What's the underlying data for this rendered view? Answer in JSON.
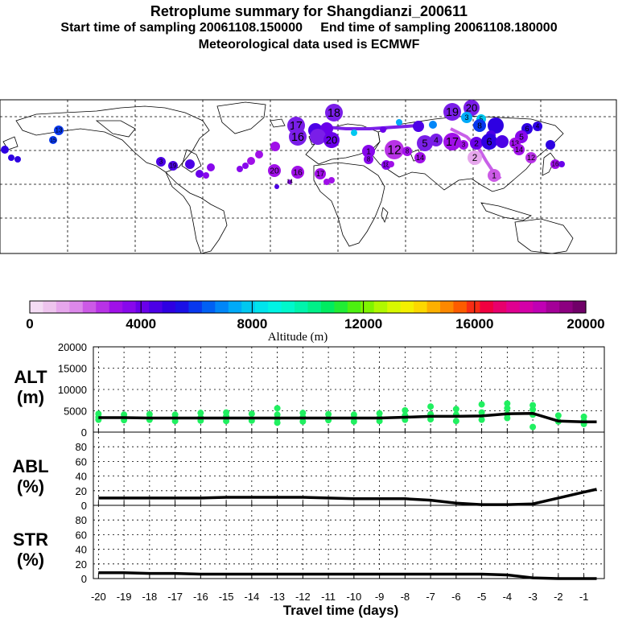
{
  "header": {
    "title": "Retroplume summary for Shangdianzi_200611",
    "subtitle": "Start time of sampling 20061108.150000     End time of sampling 20061108.180000",
    "met": "Meteorological data used is ECMWF"
  },
  "colorbar": {
    "label": "Altitude (m)",
    "range": [
      0,
      20000
    ],
    "ticks": [
      "0",
      "4000",
      "8000",
      "12000",
      "16000",
      "20000"
    ],
    "colors": [
      "#f4dcf4",
      "#eec4ee",
      "#e6a6ec",
      "#dc88ea",
      "#cc5ae6",
      "#b832e6",
      "#a010e8",
      "#8808ec",
      "#6a00ea",
      "#4c00e6",
      "#2e00e2",
      "#1a10e6",
      "#0838ee",
      "#0060f4",
      "#0086f8",
      "#00aaf8",
      "#00c8f0",
      "#00e4ec",
      "#00f4e4",
      "#00f8cc",
      "#00f4ac",
      "#00f088",
      "#00ec60",
      "#20ec34",
      "#4cf010",
      "#80f400",
      "#b0f800",
      "#d8f800",
      "#f4f000",
      "#fcd800",
      "#fcb000",
      "#fc8800",
      "#fc5c00",
      "#f82c14",
      "#f00040",
      "#e8006c",
      "#e00090",
      "#d400a8",
      "#c000b4",
      "#a40098",
      "#8c0080",
      "#700068"
    ]
  },
  "map_plot": {
    "labels": [
      "1",
      "2",
      "3",
      "4",
      "5",
      "6",
      "7",
      "8",
      "9",
      "10",
      "11",
      "12",
      "13",
      "14",
      "15",
      "16",
      "17",
      "18",
      "19",
      "20"
    ]
  },
  "chart_data": [
    {
      "type": "line",
      "name": "ALT",
      "title": "",
      "ylabel": "ALT (m)",
      "ylabel_lines": [
        "ALT",
        "(m)"
      ],
      "xlabel": "Travel time (days)",
      "xlim": [
        -20.2,
        -0.2
      ],
      "ylim": [
        0,
        20000
      ],
      "yticks": [
        "0",
        "5000",
        "10000",
        "15000",
        "20000"
      ],
      "ytick_values": [
        0,
        5000,
        10000,
        15000,
        20000
      ],
      "x": [
        -20,
        -19,
        -18,
        -17,
        -16,
        -15,
        -14,
        -13,
        -12,
        -11,
        -10,
        -9,
        -8,
        -7,
        -6,
        -5,
        -4,
        -3,
        -2,
        -1,
        -0.5
      ],
      "series": [
        {
          "name": "mean altitude",
          "values": [
            3400,
            3400,
            3300,
            3300,
            3300,
            3300,
            3300,
            3300,
            3300,
            3300,
            3300,
            3300,
            3500,
            3700,
            3700,
            3800,
            4300,
            4400,
            2600,
            2400,
            2400
          ]
        }
      ],
      "scatter_x": [
        -20,
        -20,
        -20,
        -19,
        -19,
        -19,
        -18,
        -18,
        -18,
        -17,
        -17,
        -17,
        -16,
        -16,
        -16,
        -15,
        -15,
        -15,
        -14,
        -14,
        -13,
        -13,
        -13,
        -13,
        -12,
        -12,
        -12,
        -11,
        -11,
        -10,
        -10,
        -10,
        -9,
        -9,
        -9,
        -8,
        -8,
        -8,
        -7,
        -7,
        -7,
        -6,
        -6,
        -6,
        -5,
        -5,
        -5,
        -4,
        -4,
        -4,
        -4,
        -3,
        -3,
        -3,
        -3,
        -2,
        -2,
        -1,
        -1,
        -1
      ],
      "scatter_y": [
        4300,
        3500,
        2900,
        4100,
        3400,
        2800,
        4200,
        3300,
        2900,
        4100,
        3300,
        2600,
        4500,
        3400,
        2700,
        4600,
        3700,
        2600,
        4300,
        2700,
        5600,
        4100,
        3100,
        2200,
        4500,
        3500,
        2500,
        4200,
        2800,
        4100,
        3300,
        2500,
        4400,
        3300,
        2600,
        5100,
        3900,
        2900,
        6000,
        4200,
        3000,
        5400,
        4100,
        2600,
        6500,
        4600,
        2900,
        6700,
        5600,
        4200,
        3300,
        6300,
        5300,
        4100,
        1200,
        3900,
        2500,
        3600,
        2600,
        1900
      ],
      "scatter_color": "#20f060"
    },
    {
      "type": "line",
      "name": "ABL",
      "ylabel": "ABL (%)",
      "ylabel_lines": [
        "ABL",
        "(%)"
      ],
      "xlim": [
        -20.2,
        -0.2
      ],
      "ylim": [
        0,
        100
      ],
      "yticks": [
        "0",
        "20",
        "40",
        "60",
        "80"
      ],
      "ytick_values": [
        0,
        20,
        40,
        60,
        80
      ],
      "x": [
        -20,
        -19,
        -18,
        -17,
        -16,
        -15,
        -14,
        -13,
        -12,
        -11,
        -10,
        -9,
        -8,
        -7,
        -6,
        -5,
        -4,
        -3,
        -2,
        -1,
        -0.5
      ],
      "series": [
        {
          "name": "ABL fraction",
          "values": [
            10,
            10,
            10,
            10,
            10,
            11,
            11,
            11,
            11,
            10,
            9,
            9,
            9,
            7,
            3,
            1,
            1,
            2,
            10,
            18,
            22
          ]
        }
      ]
    },
    {
      "type": "line",
      "name": "STR",
      "ylabel": "STR (%)",
      "ylabel_lines": [
        "STR",
        "(%)"
      ],
      "xlabel": "Travel time (days)",
      "xlim": [
        -20.2,
        -0.2
      ],
      "ylim": [
        0,
        100
      ],
      "yticks": [
        "0",
        "20",
        "40",
        "60",
        "80"
      ],
      "ytick_values": [
        0,
        20,
        40,
        60,
        80
      ],
      "xticks": [
        "-20",
        "-19",
        "-18",
        "-17",
        "-16",
        "-15",
        "-14",
        "-13",
        "-12",
        "-11",
        "-10",
        "-9",
        "-8",
        "-7",
        "-6",
        "-5",
        "-4",
        "-3",
        "-2",
        "-1"
      ],
      "xtick_values": [
        -20,
        -19,
        -18,
        -17,
        -16,
        -15,
        -14,
        -13,
        -12,
        -11,
        -10,
        -9,
        -8,
        -7,
        -6,
        -5,
        -4,
        -3,
        -2,
        -1
      ],
      "x": [
        -20,
        -19,
        -18,
        -17,
        -16,
        -15,
        -14,
        -13,
        -12,
        -11,
        -10,
        -9,
        -8,
        -7,
        -6,
        -5,
        -4,
        -3,
        -2,
        -1,
        -0.5
      ],
      "series": [
        {
          "name": "stratospheric fraction",
          "values": [
            8,
            8,
            7,
            7,
            6,
            6,
            6,
            6,
            6,
            6,
            6,
            6,
            6,
            6,
            6,
            6,
            5,
            1,
            0,
            0,
            0
          ]
        }
      ]
    }
  ]
}
